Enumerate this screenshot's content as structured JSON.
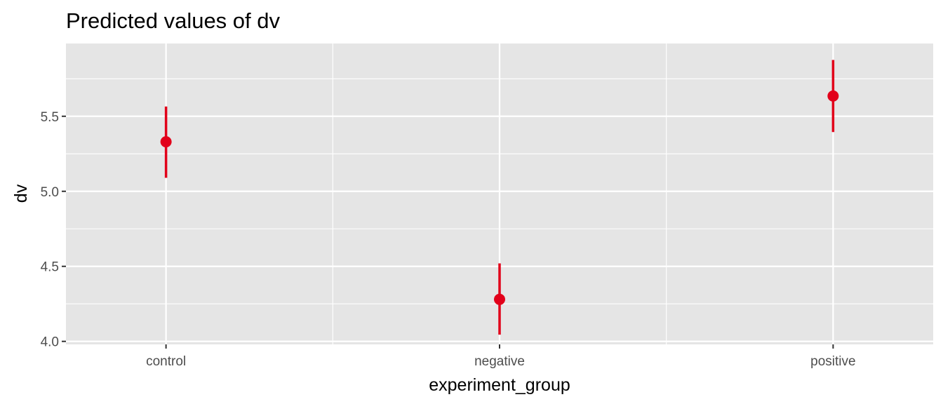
{
  "chart_data": {
    "type": "scatter",
    "title": "Predicted values of dv",
    "xlabel": "experiment_group",
    "ylabel": "dv",
    "categories": [
      "control",
      "negative",
      "positive"
    ],
    "series": [
      {
        "values": [
          5.33,
          4.28,
          5.635
        ],
        "ci_low": [
          5.09,
          4.045,
          5.395
        ],
        "ci_high": [
          5.565,
          4.52,
          5.875
        ]
      }
    ],
    "ylim": [
      3.98,
      5.985
    ],
    "yticks": [
      4.0,
      4.5,
      5.0,
      5.5
    ],
    "ytick_labels": [
      "4.0",
      "4.5",
      "5.0",
      "5.5"
    ],
    "grid": true,
    "colors": {
      "point": "#e2001a",
      "panel": "#e5e5e5",
      "grid": "#ffffff",
      "tick_text": "#4d4d4d",
      "tick_mark": "#333333"
    }
  }
}
